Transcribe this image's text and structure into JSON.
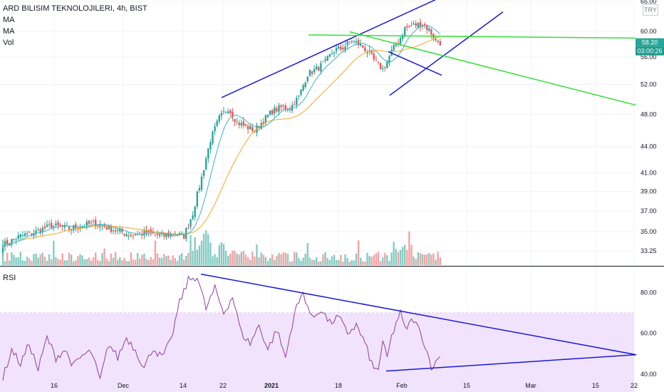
{
  "header": {
    "title": "ARD BILISIM TEKNOLOJILERI, 4h, BIST",
    "indicators": [
      "MA",
      "MA",
      "Vol"
    ],
    "currency": "TRY"
  },
  "price_badges": {
    "last": "58.20",
    "countdown": "03:00:26"
  },
  "colors": {
    "up": "#26a69a",
    "down": "#ef5350",
    "ma_fast": "#3bb3c3",
    "ma_slow": "#f6a623",
    "trend_blue": "#1b1bd6",
    "trend_green": "#33e033",
    "vol_up": "#84ccc3",
    "vol_down": "#f5a3a3",
    "rsi_line": "#8e3fa0",
    "rsi_band": "#f1e3fb"
  },
  "chart_data": [
    {
      "type": "candlestick",
      "title": "ARD BILISIM TEKNOLOJILERI, 4h, BIST",
      "y_scale": "log",
      "ylim": [
        32,
        65
      ],
      "y_ticks": [
        "65.00",
        "60.00",
        "56.00",
        "52.00",
        "48.00",
        "44.00",
        "41.00",
        "39.00",
        "37.00",
        "35.00",
        "33.25"
      ],
      "x_ticks": [
        "16",
        "Dec",
        "14",
        "22",
        "2021",
        "18",
        "Feb",
        "15",
        "Mar",
        "15",
        "22"
      ],
      "series": [
        {
          "name": "MA",
          "kind": "ma_fast"
        },
        {
          "name": "MA",
          "kind": "ma_slow"
        },
        {
          "name": "Vol",
          "kind": "volume"
        }
      ],
      "close_keypoints": [
        [
          0,
          33.8
        ],
        [
          8,
          34.6
        ],
        [
          15,
          35.0
        ],
        [
          22,
          35.6
        ],
        [
          30,
          35.3
        ],
        [
          36,
          35.6
        ],
        [
          42,
          35.8
        ],
        [
          50,
          35.2
        ],
        [
          58,
          34.7
        ],
        [
          66,
          34.9
        ],
        [
          72,
          34.6
        ],
        [
          78,
          34.8
        ],
        [
          82,
          34.6
        ],
        [
          86,
          36.8
        ],
        [
          90,
          40.5
        ],
        [
          94,
          44.8
        ],
        [
          98,
          47.5
        ],
        [
          102,
          48.8
        ],
        [
          106,
          47.0
        ],
        [
          110,
          46.4
        ],
        [
          114,
          46.0
        ],
        [
          118,
          47.2
        ],
        [
          122,
          48.4
        ],
        [
          126,
          48.9
        ],
        [
          130,
          48.8
        ],
        [
          134,
          50.3
        ],
        [
          138,
          53.5
        ],
        [
          142,
          54.2
        ],
        [
          146,
          55.2
        ],
        [
          150,
          57.0
        ],
        [
          154,
          57.4
        ],
        [
          158,
          58.5
        ],
        [
          162,
          57.8
        ],
        [
          166,
          56.5
        ],
        [
          168,
          55.5
        ],
        [
          172,
          54.2
        ],
        [
          174,
          55.3
        ],
        [
          176,
          56.8
        ],
        [
          180,
          59.0
        ],
        [
          182,
          60.5
        ],
        [
          186,
          61.0
        ],
        [
          190,
          61.2
        ],
        [
          193,
          60.2
        ],
        [
          196,
          58.6
        ],
        [
          198,
          58.2
        ]
      ],
      "price_badge": 58.2
    },
    {
      "type": "line",
      "title": "RSI",
      "ylim": [
        33,
        92
      ],
      "y_ticks": [
        "80.00",
        "60.00",
        "40.00"
      ],
      "band": [
        30,
        70
      ],
      "rsi_keypoints": [
        [
          0,
          38
        ],
        [
          4,
          52
        ],
        [
          8,
          45
        ],
        [
          12,
          55
        ],
        [
          16,
          42
        ],
        [
          20,
          58
        ],
        [
          24,
          48
        ],
        [
          28,
          52
        ],
        [
          32,
          44
        ],
        [
          36,
          49
        ],
        [
          40,
          51
        ],
        [
          44,
          37
        ],
        [
          48,
          55
        ],
        [
          52,
          48
        ],
        [
          56,
          58
        ],
        [
          60,
          52
        ],
        [
          64,
          43
        ],
        [
          68,
          53
        ],
        [
          72,
          48
        ],
        [
          76,
          56
        ],
        [
          80,
          75
        ],
        [
          84,
          86
        ],
        [
          88,
          88
        ],
        [
          92,
          72
        ],
        [
          96,
          82
        ],
        [
          100,
          70
        ],
        [
          104,
          78
        ],
        [
          108,
          60
        ],
        [
          112,
          55
        ],
        [
          116,
          64
        ],
        [
          120,
          52
        ],
        [
          124,
          62
        ],
        [
          128,
          48
        ],
        [
          132,
          70
        ],
        [
          136,
          80
        ],
        [
          140,
          67
        ],
        [
          144,
          72
        ],
        [
          148,
          65
        ],
        [
          152,
          68
        ],
        [
          156,
          60
        ],
        [
          160,
          64
        ],
        [
          164,
          55
        ],
        [
          168,
          42
        ],
        [
          170,
          43
        ],
        [
          172,
          55
        ],
        [
          174,
          48
        ],
        [
          176,
          58
        ],
        [
          178,
          65
        ],
        [
          180,
          70
        ],
        [
          182,
          62
        ],
        [
          186,
          67
        ],
        [
          190,
          58
        ],
        [
          194,
          44
        ],
        [
          196,
          45
        ],
        [
          198,
          50
        ]
      ]
    }
  ]
}
